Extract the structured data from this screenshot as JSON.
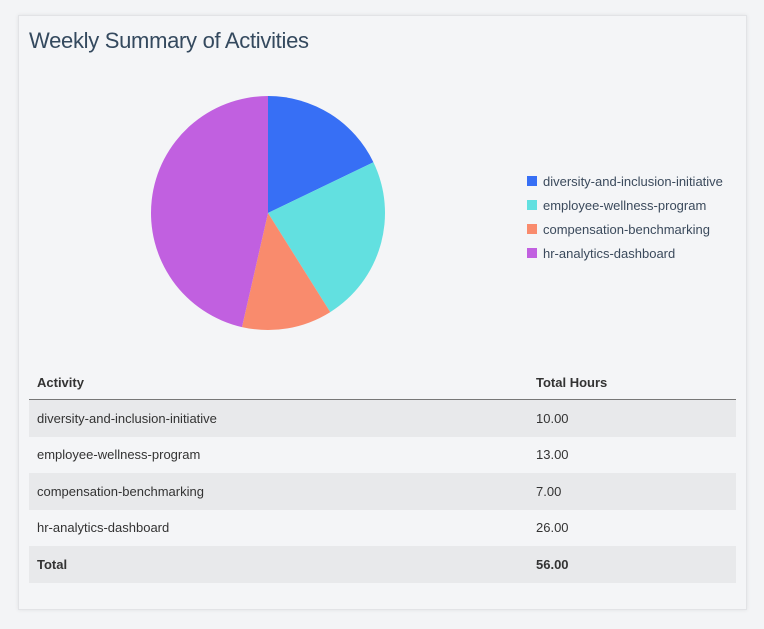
{
  "title": "Weekly Summary of Activities",
  "chart_data": {
    "type": "pie",
    "labels": [
      "diversity-and-inclusion-initiative",
      "employee-wellness-program",
      "compensation-benchmarking",
      "hr-analytics-dashboard"
    ],
    "values": [
      10,
      13,
      7,
      26
    ],
    "colors": [
      "#376ff5",
      "#62e0e0",
      "#f98b6d",
      "#c160e0"
    ],
    "legend_position": "right",
    "start": "top",
    "direction": "clockwise"
  },
  "table": {
    "headers": [
      "Activity",
      "Total Hours"
    ],
    "rows": [
      [
        "diversity-and-inclusion-initiative",
        "10.00"
      ],
      [
        "employee-wellness-program",
        "13.00"
      ],
      [
        "compensation-benchmarking",
        "7.00"
      ],
      [
        "hr-analytics-dashboard",
        "26.00"
      ]
    ],
    "total": [
      "Total",
      "56.00"
    ]
  }
}
